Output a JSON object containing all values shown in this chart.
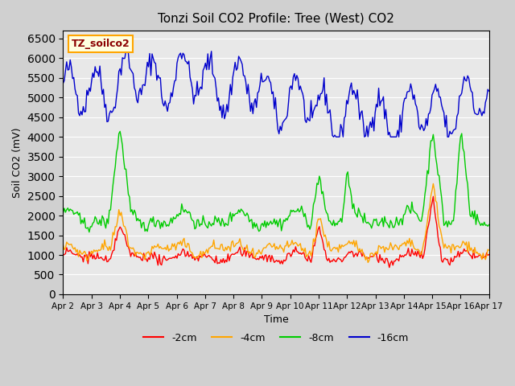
{
  "title": "Tonzi Soil CO2 Profile: Tree (West) CO2",
  "ylabel": "Soil CO2 (mV)",
  "xlabel": "Time",
  "legend_label": "TZ_soilco2",
  "series_labels": [
    "-2cm",
    "-4cm",
    "-8cm",
    "-16cm"
  ],
  "series_colors": [
    "#ff0000",
    "#ffa500",
    "#00cc00",
    "#0000cc"
  ],
  "ylim": [
    0,
    6700
  ],
  "yticks": [
    0,
    500,
    1000,
    1500,
    2000,
    2500,
    3000,
    3500,
    4000,
    4500,
    5000,
    5500,
    6000,
    6500
  ],
  "xtick_labels": [
    "Apr 2",
    "Apr 3",
    "Apr 4",
    "Apr 5",
    "Apr 6",
    "Apr 7",
    "Apr 8",
    "Apr 9",
    "Apr 10",
    "Apr 11",
    "Apr 12",
    "Apr 13",
    "Apr 14",
    "Apr 15",
    "Apr 16",
    "Apr 17"
  ],
  "plot_bg": "#e8e8e8",
  "linewidth": 1.0
}
